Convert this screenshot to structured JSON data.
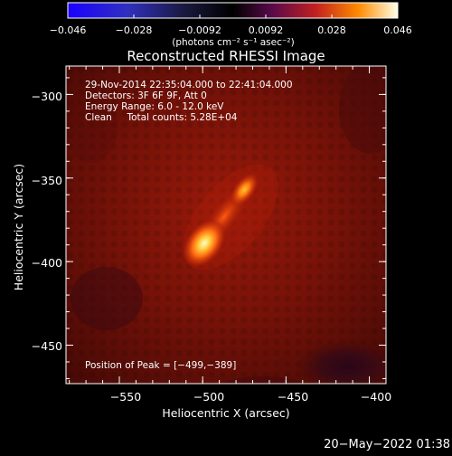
{
  "colorbar": {
    "ticks": [
      "−0.046",
      "−0.028",
      "−0.0092",
      "0.0092",
      "0.028",
      "0.046"
    ],
    "unit_label": "(photons cm⁻² s⁻¹ asec⁻²)",
    "range": [
      -0.046,
      0.046
    ]
  },
  "title": "Reconstructed RHESSI Image",
  "info_lines": [
    "29-Nov-2014 22:35:04.000 to 22:41:04.000",
    "Detectors: 3F 6F 9F, Att 0",
    "Energy Range: 6.0 - 12.0 keV",
    "Clean     Total counts: 5.28E+04"
  ],
  "peak_label": "Position of Peak = [−499,−389]",
  "footer_date": "20−May−2022 01:38",
  "chart_data": {
    "type": "heatmap",
    "title": "Reconstructed RHESSI Image",
    "xlabel": "Heliocentric X (arcsec)",
    "ylabel": "Heliocentric Y (arcsec)",
    "xlim": [
      -582,
      -390
    ],
    "ylim": [
      -473,
      -283
    ],
    "xticks": [
      -550,
      -500,
      -450,
      -400
    ],
    "yticks": [
      -300,
      -350,
      -400,
      -450
    ],
    "xtick_labels": [
      "−550",
      "−500",
      "−450",
      "−400"
    ],
    "ytick_labels": [
      "−300",
      "−350",
      "−400",
      "−450"
    ],
    "colormap": "red-temperature",
    "sources": [
      {
        "x": -499,
        "y": -389,
        "relative_intensity": 1.0
      },
      {
        "x": -475,
        "y": -357,
        "relative_intensity": 0.65
      }
    ],
    "peak": {
      "x": -499,
      "y": -389
    }
  }
}
